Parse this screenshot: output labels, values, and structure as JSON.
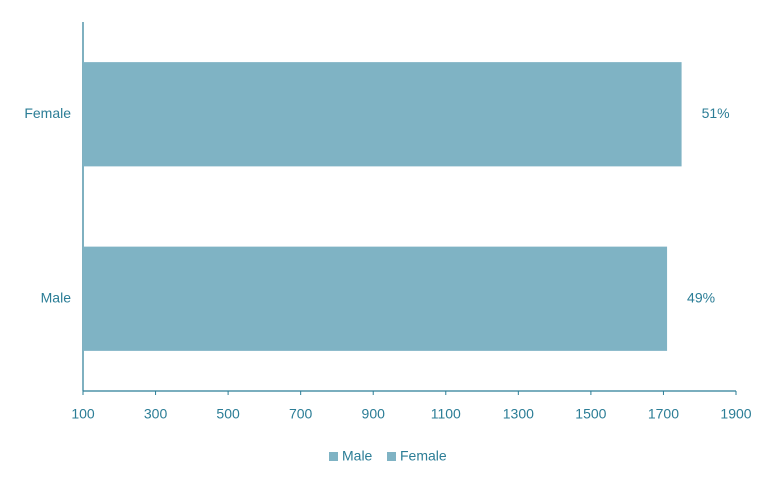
{
  "chart_data": {
    "type": "bar",
    "orientation": "horizontal",
    "categories": [
      "Male",
      "Female"
    ],
    "series": [
      {
        "name": "Male",
        "color": "#7fb3c4",
        "values": [
          1710,
          null
        ]
      },
      {
        "name": "Female",
        "color": "#7fb3c4",
        "values": [
          null,
          1750
        ]
      }
    ],
    "shares": {
      "values": [
        49,
        51
      ],
      "value_labels": [
        "49%",
        "51%"
      ]
    },
    "xlim": [
      100,
      1900
    ],
    "xticks": [
      100,
      300,
      500,
      700,
      900,
      1100,
      1300,
      1500,
      1700,
      1900
    ],
    "grid": false,
    "legend": "bottom"
  }
}
